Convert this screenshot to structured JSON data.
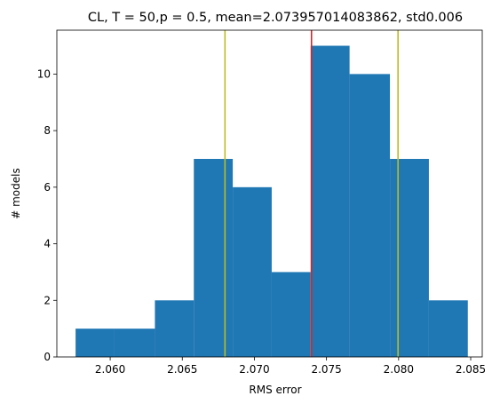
{
  "chart_data": {
    "type": "bar",
    "title": "CL, T = 50,p = 0.5, mean=2.073957014083862, std0.006",
    "xlabel": "RMS error",
    "ylabel": "# models",
    "xlim": [
      2.0563,
      2.0858
    ],
    "ylim": [
      0,
      11.55
    ],
    "bar_color": "#1f77b4",
    "bins": [
      {
        "x0": 2.0576,
        "x1": 2.0603,
        "count": 1
      },
      {
        "x0": 2.0603,
        "x1": 2.0631,
        "count": 1
      },
      {
        "x0": 2.0631,
        "x1": 2.0658,
        "count": 2
      },
      {
        "x0": 2.0658,
        "x1": 2.0685,
        "count": 7
      },
      {
        "x0": 2.0685,
        "x1": 2.0712,
        "count": 6
      },
      {
        "x0": 2.0712,
        "x1": 2.0739,
        "count": 3
      },
      {
        "x0": 2.0739,
        "x1": 2.0766,
        "count": 11
      },
      {
        "x0": 2.0766,
        "x1": 2.0794,
        "count": 10
      },
      {
        "x0": 2.0794,
        "x1": 2.0821,
        "count": 7
      },
      {
        "x0": 2.0821,
        "x1": 2.0848,
        "count": 2
      }
    ],
    "vlines": [
      {
        "name": "mean-line",
        "x": 2.07396,
        "color": "#d62728"
      },
      {
        "name": "lower-std-line",
        "x": 2.06796,
        "color": "#bcbd22"
      },
      {
        "name": "upper-std-line",
        "x": 2.07996,
        "color": "#bcbd22"
      }
    ],
    "xticks": [
      2.06,
      2.065,
      2.07,
      2.075,
      2.08,
      2.085
    ],
    "xtick_labels": [
      "2.060",
      "2.065",
      "2.070",
      "2.075",
      "2.080",
      "2.085"
    ],
    "yticks": [
      0,
      2,
      4,
      6,
      8,
      10
    ],
    "ytick_labels": [
      "0",
      "2",
      "4",
      "6",
      "8",
      "10"
    ]
  }
}
